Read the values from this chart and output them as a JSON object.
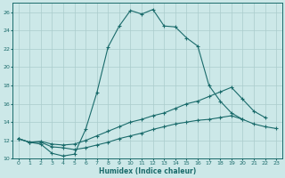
{
  "xlabel": "Humidex (Indice chaleur)",
  "bg_color": "#cce8e8",
  "grid_color": "#aacccc",
  "line_color": "#1a6b6b",
  "xlim": [
    -0.5,
    23.5
  ],
  "ylim": [
    10,
    27
  ],
  "xticks": [
    0,
    1,
    2,
    3,
    4,
    5,
    6,
    7,
    8,
    9,
    10,
    11,
    12,
    13,
    14,
    15,
    16,
    17,
    18,
    19,
    20,
    21,
    22,
    23
  ],
  "yticks": [
    10,
    12,
    14,
    16,
    18,
    20,
    22,
    24,
    26
  ],
  "line1_x": [
    0,
    1,
    2,
    3,
    4,
    5,
    6,
    7,
    8,
    9,
    10,
    11,
    12,
    13,
    14,
    15,
    16,
    17,
    18,
    19,
    20
  ],
  "line1_y": [
    12.2,
    11.8,
    11.6,
    10.6,
    10.3,
    10.5,
    13.2,
    17.2,
    22.2,
    24.5,
    26.2,
    25.8,
    26.3,
    24.5,
    24.4,
    23.2,
    22.3,
    18.0,
    16.3,
    15.0,
    14.3
  ],
  "line2_x": [
    0,
    1,
    2,
    3,
    4,
    5,
    6,
    7,
    8,
    9,
    10,
    11,
    12,
    13,
    14,
    15,
    16,
    17,
    18,
    19,
    20,
    21,
    22
  ],
  "line2_y": [
    12.2,
    11.8,
    11.9,
    11.6,
    11.5,
    11.6,
    12.0,
    12.5,
    13.0,
    13.5,
    14.0,
    14.3,
    14.7,
    15.0,
    15.5,
    16.0,
    16.3,
    16.8,
    17.3,
    17.8,
    16.5,
    15.2,
    14.5
  ],
  "line3_x": [
    0,
    1,
    2,
    3,
    4,
    5,
    6,
    7,
    8,
    9,
    10,
    11,
    12,
    13,
    14,
    15,
    16,
    17,
    18,
    19,
    20,
    21,
    22,
    23
  ],
  "line3_y": [
    12.2,
    11.8,
    11.8,
    11.3,
    11.2,
    11.0,
    11.2,
    11.5,
    11.8,
    12.2,
    12.5,
    12.8,
    13.2,
    13.5,
    13.8,
    14.0,
    14.2,
    14.3,
    14.5,
    14.7,
    14.3,
    13.8,
    13.5,
    13.3
  ]
}
